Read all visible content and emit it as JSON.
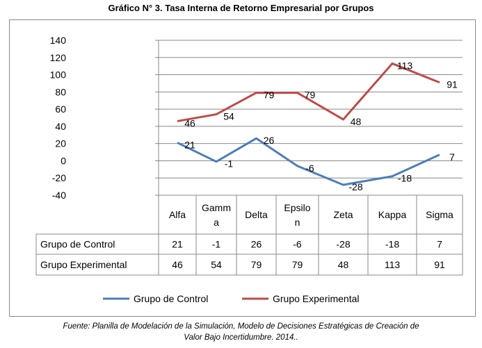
{
  "chart_data": {
    "type": "line",
    "title": "Gráfico N° 3. Tasa Interna de Retorno Empresarial por Grupos",
    "categories": [
      "Alfa",
      "Gamma",
      "Delta",
      "Epsilon",
      "Zeta",
      "Kappa",
      "Sigma"
    ],
    "category_display": [
      [
        "Alfa"
      ],
      [
        "Gamm",
        "a"
      ],
      [
        "Delta"
      ],
      [
        "Epsilo",
        "n"
      ],
      [
        "Zeta"
      ],
      [
        "Kappa"
      ],
      [
        "Sigma"
      ]
    ],
    "series": [
      {
        "name": "Grupo de Control",
        "color": "#4a7ebb",
        "values": [
          21,
          -1,
          26,
          -6,
          -28,
          -18,
          7
        ]
      },
      {
        "name": "Grupo Experimental",
        "color": "#be4b48",
        "values": [
          46,
          54,
          79,
          79,
          48,
          113,
          91
        ]
      }
    ],
    "ylim": [
      -40,
      140
    ],
    "yticks": [
      140,
      120,
      100,
      80,
      60,
      40,
      20,
      0,
      -20,
      -40
    ],
    "grid": true,
    "legend": "bottom",
    "data_table": true
  },
  "footer": {
    "line1": "Fuente: Planilla de Modelación de la Simulación, Modelo de Decisiones Estratégicas de Creación de",
    "line2": "Valor Bajo Incertidumbre. 2014.."
  }
}
